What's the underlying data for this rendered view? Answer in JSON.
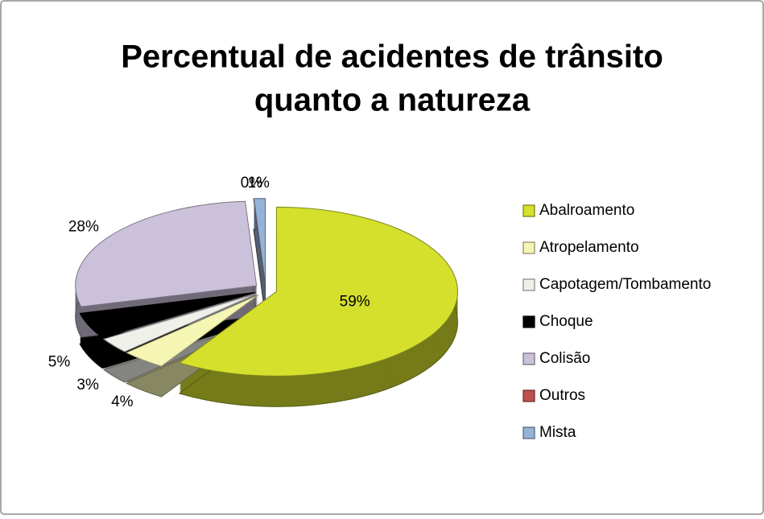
{
  "chart_data": {
    "type": "pie",
    "title": [
      "Percentual de acidentes de trânsito",
      "quanto a natureza"
    ],
    "categories": [
      "Abalroamento",
      "Atropelamento",
      "Capotagem/Tombamento",
      "Choque",
      "Colisão",
      "Outros",
      "Mista"
    ],
    "values": [
      59,
      4,
      3,
      5,
      28,
      0,
      1
    ],
    "value_labels": [
      "59%",
      "4%",
      "3%",
      "5%",
      "28%",
      "0%",
      "1%"
    ],
    "colors": [
      "#d4e02c",
      "#f6f6b4",
      "#f0f0ea",
      "#000000",
      "#ccc1da",
      "#c0504d",
      "#95b3d7"
    ],
    "legend": "right"
  }
}
